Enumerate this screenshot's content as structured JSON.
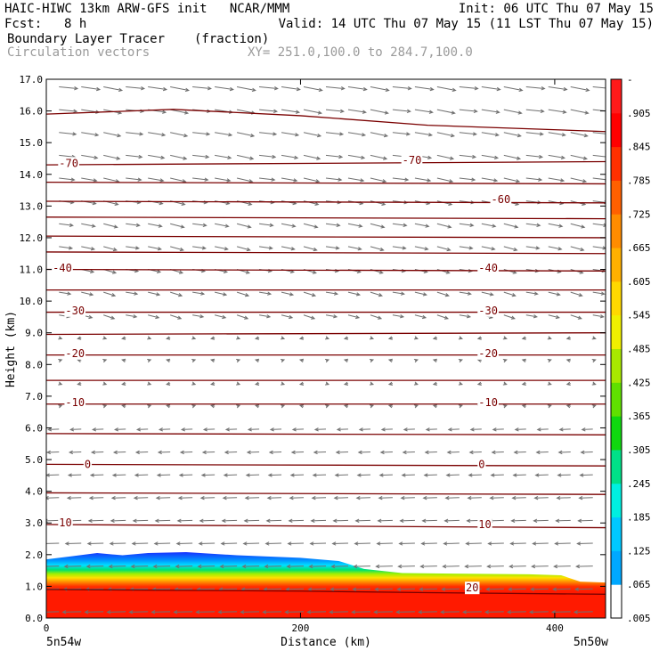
{
  "header": {
    "line1_left": "HAIC-HIWC 13km ARW-GFS init   NCAR/MMM",
    "line1_right": "Init: 06 UTC Thu 07 May 15",
    "fcst_label": "Fcst:",
    "fcst_value": "8 h",
    "valid": "Valid: 14 UTC Thu 07 May 15 (11 LST Thu 07 May 15)",
    "field_name": "Boundary Layer Tracer",
    "field_unit": "(fraction)",
    "vector_label": "Circulation vectors",
    "xy_range": "XY= 251.0,100.0 to 284.7,100.0"
  },
  "colors": {
    "contour": "#7a0000",
    "vector": "#707070",
    "tracer_high": "#ff1a00",
    "tracer_low": "#1030ff"
  },
  "chart_data": {
    "type": "heatmap",
    "title": "Boundary Layer Tracer",
    "xlabel": "Distance (km)",
    "ylabel": "Height (km)",
    "xlim": [
      0,
      440
    ],
    "ylim": [
      0,
      17
    ],
    "x_ticks": [
      0,
      200,
      400
    ],
    "y_ticks": [
      "0.0",
      "1.0",
      "2.0",
      "3.0",
      "4.0",
      "5.0",
      "6.0",
      "7.0",
      "8.0",
      "9.0",
      "10.0",
      "11.0",
      "12.0",
      "13.0",
      "14.0",
      "15.0",
      "16.0",
      "17.0"
    ],
    "x_endpoint_labels": [
      "5n54w",
      "5n50w"
    ],
    "colorbar_labels": [
      "-",
      ".905",
      ".845",
      ".785",
      ".725",
      ".665",
      ".605",
      ".545",
      ".485",
      ".425",
      ".365",
      ".305",
      ".245",
      ".185",
      ".125",
      ".065",
      ".005"
    ],
    "colorbar_colors": [
      "#ffffff",
      "#00a8ff",
      "#00c8ff",
      "#00f0e0",
      "#00e088",
      "#10d810",
      "#60e000",
      "#a8e800",
      "#f0f000",
      "#ffd800",
      "#ffb000",
      "#ff8c00",
      "#ff6000",
      "#ff3000",
      "#ff0000",
      "#ff1a1a"
    ],
    "pbl_top_km": [
      [
        0,
        1.85
      ],
      [
        20,
        1.95
      ],
      [
        40,
        2.05
      ],
      [
        60,
        1.98
      ],
      [
        80,
        2.05
      ],
      [
        110,
        2.08
      ],
      [
        150,
        1.98
      ],
      [
        200,
        1.9
      ],
      [
        230,
        1.8
      ],
      [
        250,
        1.55
      ],
      [
        280,
        1.42
      ],
      [
        320,
        1.4
      ],
      [
        380,
        1.38
      ],
      [
        405,
        1.35
      ],
      [
        420,
        1.15
      ],
      [
        440,
        1.12
      ]
    ],
    "temperature_contours": [
      {
        "label": "20",
        "points": [
          [
            0,
            0.9
          ],
          [
            200,
            0.85
          ],
          [
            300,
            0.8
          ],
          [
            440,
            0.75
          ]
        ],
        "label_positions": [
          [
            330,
            0.95
          ]
        ]
      },
      {
        "label": "10",
        "points": [
          [
            0,
            2.95
          ],
          [
            220,
            2.9
          ],
          [
            440,
            2.85
          ]
        ],
        "label_positions": [
          [
            10,
            3.0
          ],
          [
            340,
            2.95
          ]
        ]
      },
      {
        "label": "",
        "points": [
          [
            0,
            3.95
          ],
          [
            440,
            3.9
          ]
        ]
      },
      {
        "label": "0",
        "points": [
          [
            0,
            4.85
          ],
          [
            440,
            4.8
          ]
        ],
        "label_positions": [
          [
            30,
            4.85
          ],
          [
            340,
            4.85
          ]
        ]
      },
      {
        "label": "",
        "points": [
          [
            0,
            5.82
          ],
          [
            440,
            5.78
          ]
        ]
      },
      {
        "label": "-10",
        "points": [
          [
            0,
            6.75
          ],
          [
            440,
            6.75
          ]
        ],
        "label_positions": [
          [
            15,
            6.8
          ],
          [
            340,
            6.8
          ]
        ]
      },
      {
        "label": "",
        "points": [
          [
            0,
            7.5
          ],
          [
            440,
            7.5
          ]
        ]
      },
      {
        "label": "-20",
        "points": [
          [
            0,
            8.3
          ],
          [
            440,
            8.3
          ]
        ],
        "label_positions": [
          [
            15,
            8.35
          ],
          [
            340,
            8.35
          ]
        ]
      },
      {
        "label": "",
        "points": [
          [
            0,
            8.95
          ],
          [
            440,
            9.0
          ]
        ]
      },
      {
        "label": "-30",
        "points": [
          [
            0,
            9.65
          ],
          [
            440,
            9.65
          ]
        ],
        "label_positions": [
          [
            15,
            9.7
          ],
          [
            340,
            9.7
          ]
        ]
      },
      {
        "label": "",
        "points": [
          [
            0,
            10.35
          ],
          [
            440,
            10.35
          ]
        ]
      },
      {
        "label": "-40",
        "points": [
          [
            0,
            11.0
          ],
          [
            440,
            10.95
          ]
        ],
        "label_positions": [
          [
            5,
            11.05
          ],
          [
            340,
            11.05
          ]
        ]
      },
      {
        "label": "",
        "points": [
          [
            0,
            11.55
          ],
          [
            440,
            11.5
          ]
        ]
      },
      {
        "label": "",
        "points": [
          [
            0,
            12.05
          ],
          [
            440,
            12.0
          ]
        ]
      },
      {
        "label": "",
        "points": [
          [
            0,
            12.65
          ],
          [
            440,
            12.6
          ]
        ]
      },
      {
        "label": "-60",
        "points": [
          [
            0,
            13.15
          ],
          [
            440,
            13.1
          ]
        ],
        "label_positions": [
          [
            350,
            13.2
          ]
        ]
      },
      {
        "label": "",
        "points": [
          [
            0,
            13.75
          ],
          [
            440,
            13.7
          ]
        ]
      },
      {
        "label": "-70",
        "points": [
          [
            0,
            14.3
          ],
          [
            440,
            14.4
          ]
        ],
        "label_positions": [
          [
            10,
            14.35
          ],
          [
            280,
            14.45
          ]
        ]
      },
      {
        "label": "",
        "points": [
          [
            0,
            15.9
          ],
          [
            100,
            16.05
          ],
          [
            200,
            15.85
          ],
          [
            300,
            15.55
          ],
          [
            440,
            15.35
          ]
        ]
      }
    ]
  }
}
